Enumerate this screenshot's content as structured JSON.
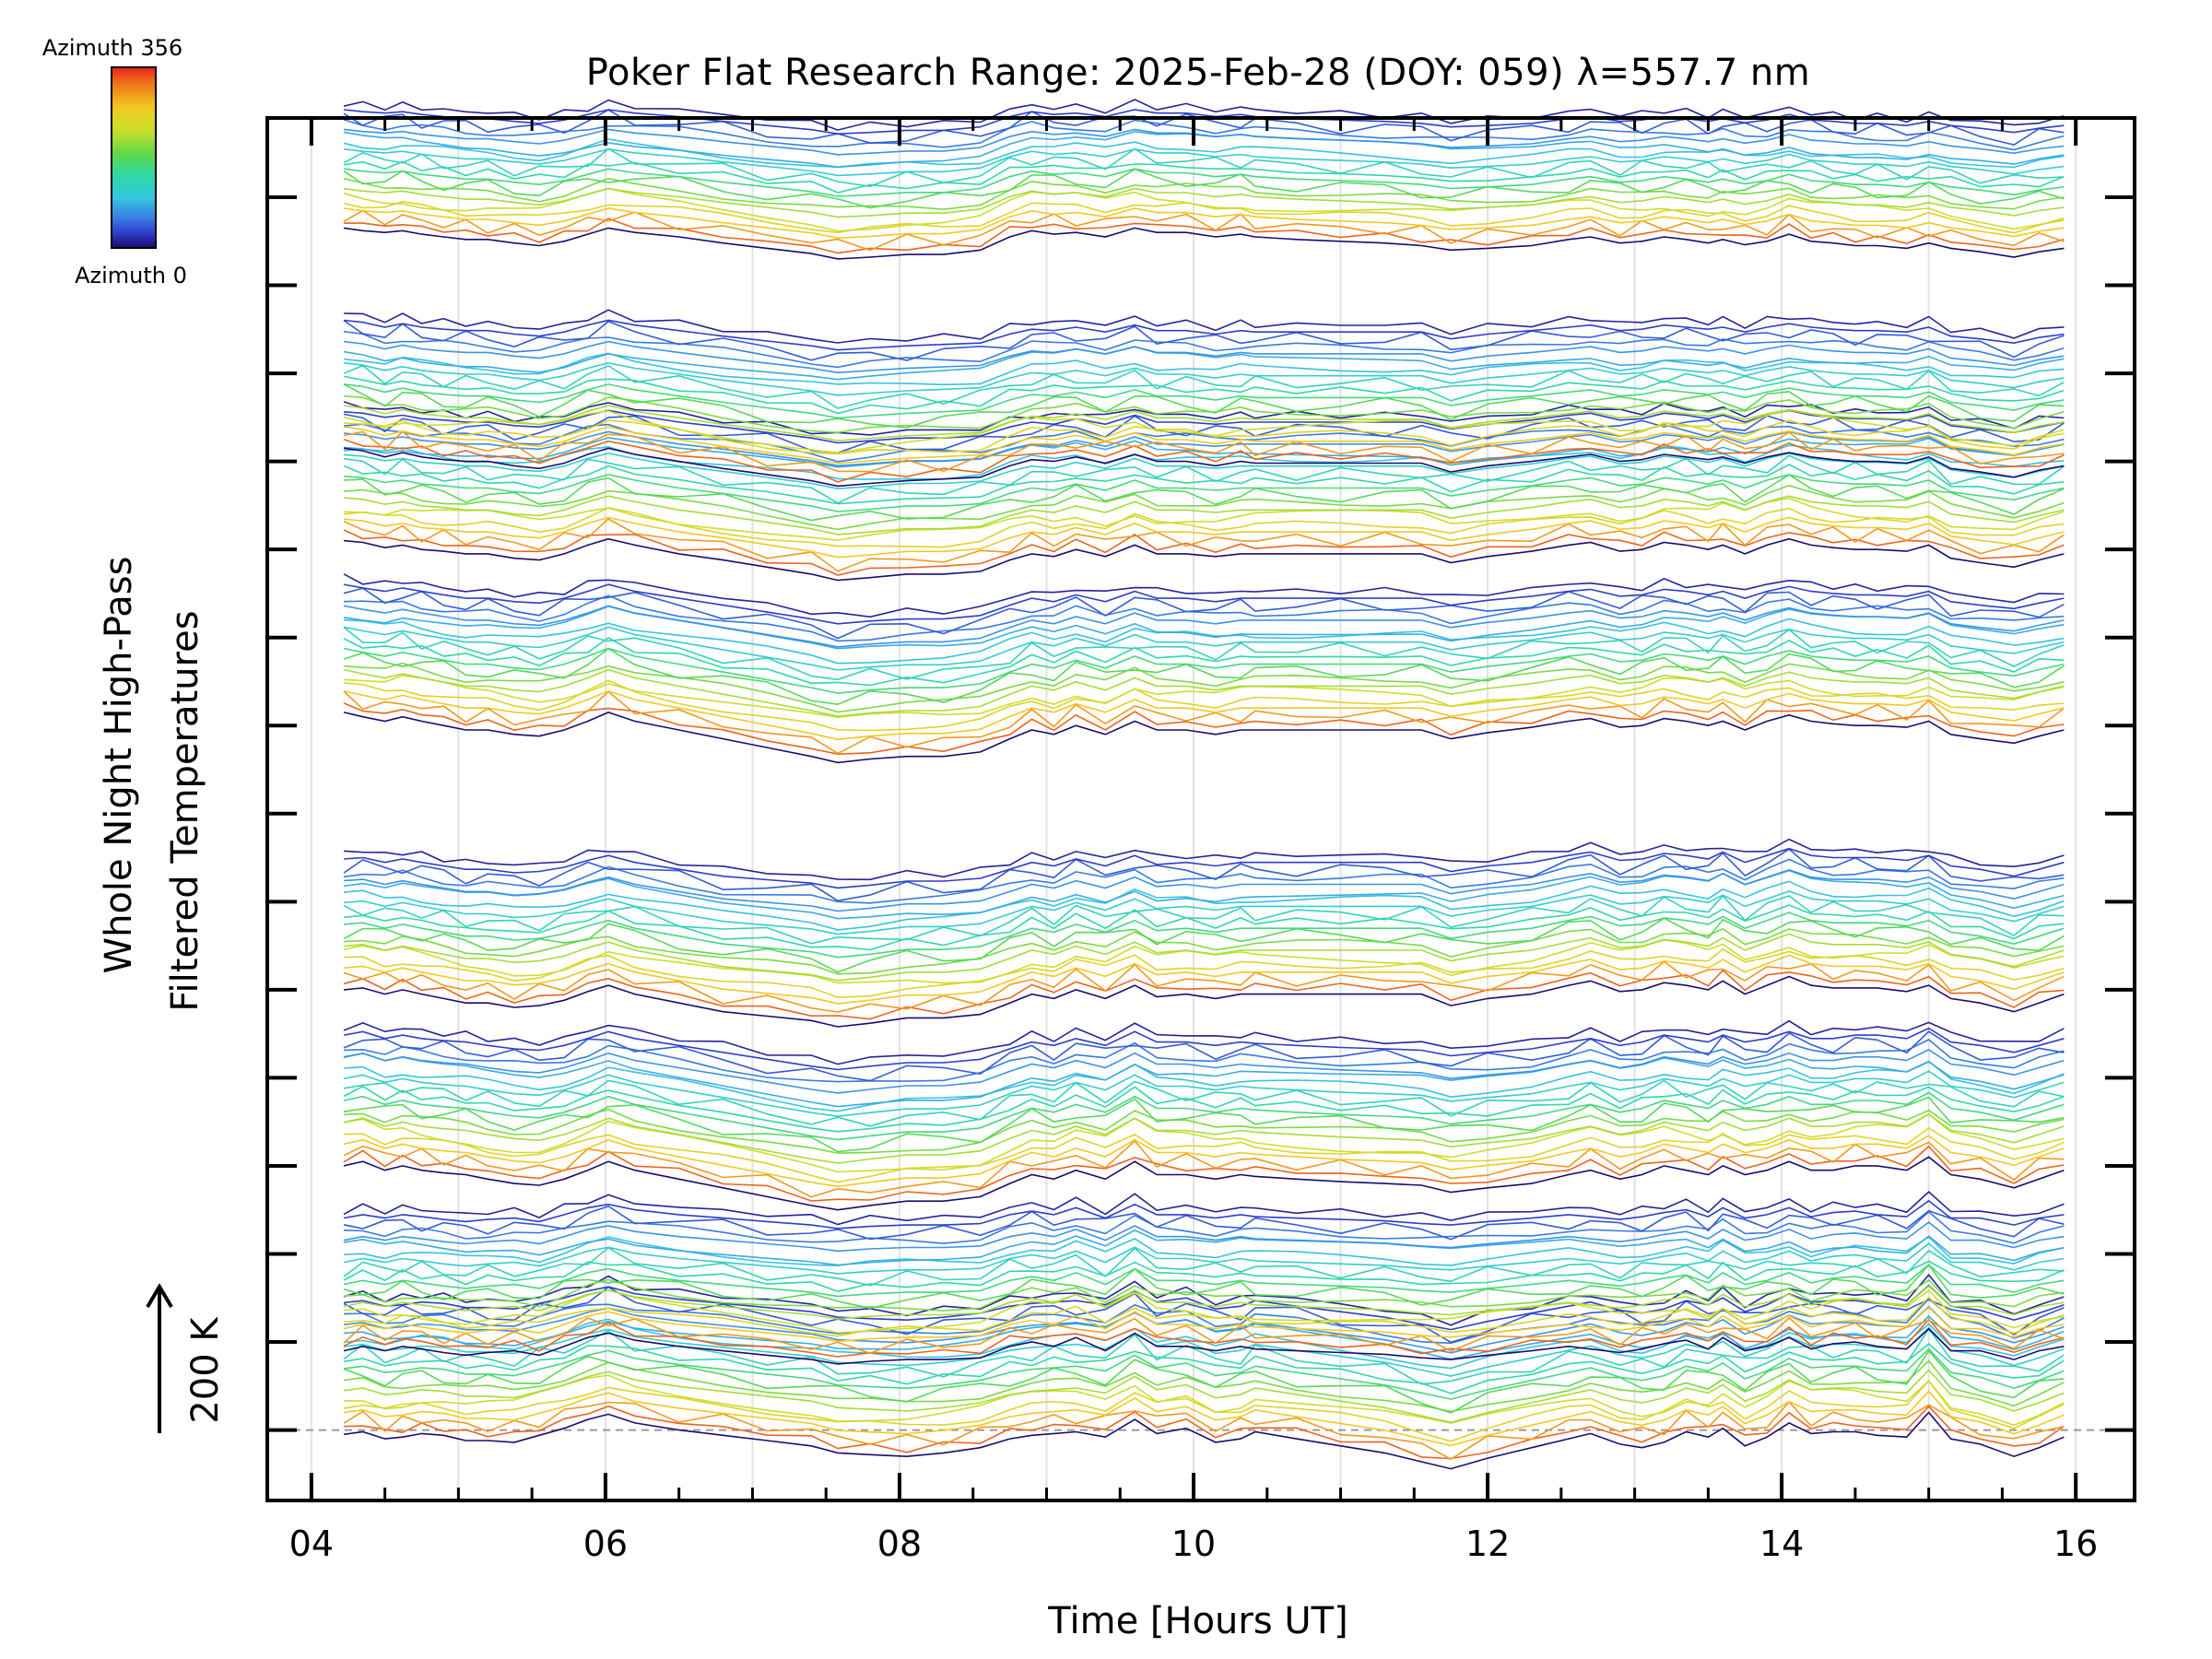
{
  "chart_data": {
    "type": "line",
    "title": "Poker Flat Research Range: 2025-Feb-28 (DOY: 059) λ=557.7 nm",
    "xlabel": "Time [Hours UT]",
    "ylabel_line1": "Whole Night High-Pass",
    "ylabel_line2": "Filtered Temperatures",
    "xlim": [
      3.7,
      16.4
    ],
    "xticks": [
      4,
      6,
      8,
      10,
      12,
      14,
      16
    ],
    "xtick_labels": [
      "04",
      "06",
      "08",
      "10",
      "12",
      "14",
      "16"
    ],
    "ylim": [
      -0.8,
      14.9
    ],
    "yticks": [
      0,
      1,
      2,
      3,
      4,
      5,
      6,
      7,
      8,
      9,
      10,
      11,
      12,
      13,
      14
    ],
    "scale_bar_label": "200 K",
    "colorbar": {
      "top_label": "Azimuth 356",
      "bottom_label": "Azimuth 0",
      "colors": [
        "#e8231c",
        "#f07c1a",
        "#f4c820",
        "#c9e02a",
        "#5ed84a",
        "#2ed8a6",
        "#35c8e0",
        "#3a86e6",
        "#2e3cc8",
        "#1c0a6e"
      ]
    },
    "grid": true,
    "series_count": 160,
    "lines_per_group": 20,
    "group_offset_step": 0.0825,
    "groups": 8,
    "time_samples": [
      4.22,
      4.35,
      4.5,
      4.62,
      4.75,
      4.9,
      5.05,
      5.2,
      5.38,
      5.55,
      5.72,
      5.88,
      6.02,
      6.2,
      6.5,
      6.8,
      7.1,
      7.4,
      7.58,
      7.8,
      8.05,
      8.3,
      8.55,
      8.75,
      8.9,
      9.05,
      9.2,
      9.4,
      9.6,
      9.75,
      9.95,
      10.15,
      10.32,
      10.42,
      10.7,
      11.0,
      11.3,
      11.55,
      11.75,
      12.0,
      12.3,
      12.55,
      12.7,
      12.9,
      13.05,
      13.2,
      13.35,
      13.5,
      13.6,
      13.75,
      13.9,
      14.05,
      14.2,
      14.35,
      14.5,
      14.65,
      14.85,
      15.0,
      15.15,
      15.35,
      15.58,
      15.75,
      15.92
    ],
    "group_profiles": [
      {
        "name": "group-1",
        "base": 0.0,
        "values": [
          -0.05,
          -0.02,
          -0.1,
          -0.08,
          -0.04,
          -0.06,
          -0.12,
          -0.12,
          -0.14,
          -0.06,
          0.02,
          0.12,
          0.18,
          0.08,
          0.0,
          -0.06,
          -0.12,
          -0.18,
          -0.26,
          -0.28,
          -0.3,
          -0.26,
          -0.2,
          -0.1,
          -0.06,
          -0.04,
          -0.02,
          -0.08,
          0.12,
          -0.04,
          0.02,
          -0.14,
          -0.1,
          -0.02,
          -0.1,
          -0.18,
          -0.26,
          -0.36,
          -0.44,
          -0.32,
          -0.2,
          -0.1,
          -0.04,
          -0.16,
          -0.2,
          -0.14,
          -0.02,
          -0.08,
          0.02,
          -0.18,
          -0.08,
          0.08,
          -0.04,
          -0.02,
          -0.02,
          -0.06,
          -0.08,
          0.2,
          -0.1,
          -0.16,
          -0.3,
          -0.2,
          -0.08
        ]
      },
      {
        "name": "group-2",
        "base": 1.0,
        "values": [
          -0.1,
          -0.05,
          -0.1,
          -0.05,
          -0.08,
          -0.12,
          -0.15,
          -0.12,
          -0.1,
          -0.15,
          -0.05,
          0.05,
          0.1,
          0.02,
          -0.05,
          -0.1,
          -0.15,
          -0.2,
          -0.25,
          -0.22,
          -0.2,
          -0.2,
          -0.18,
          -0.05,
          0.0,
          -0.05,
          0.05,
          -0.1,
          0.1,
          -0.05,
          -0.05,
          -0.1,
          -0.05,
          -0.08,
          -0.1,
          -0.12,
          -0.14,
          -0.18,
          -0.2,
          -0.15,
          -0.1,
          -0.05,
          -0.08,
          -0.12,
          -0.08,
          -0.02,
          0.02,
          -0.08,
          0.05,
          -0.1,
          -0.05,
          0.05,
          -0.08,
          -0.02,
          0.0,
          -0.05,
          -0.08,
          0.15,
          -0.1,
          -0.1,
          -0.2,
          -0.1,
          -0.05
        ]
      },
      {
        "name": "group-3",
        "base": 3.0,
        "values": [
          0.0,
          0.05,
          -0.05,
          0.0,
          -0.05,
          -0.08,
          -0.1,
          -0.15,
          -0.2,
          -0.22,
          -0.15,
          -0.05,
          0.05,
          -0.05,
          -0.15,
          -0.25,
          -0.35,
          -0.45,
          -0.5,
          -0.45,
          -0.4,
          -0.4,
          -0.35,
          -0.2,
          -0.1,
          -0.15,
          -0.05,
          -0.15,
          0.05,
          -0.1,
          -0.1,
          -0.15,
          -0.1,
          -0.12,
          -0.15,
          -0.18,
          -0.2,
          -0.22,
          -0.3,
          -0.25,
          -0.2,
          -0.1,
          -0.05,
          -0.15,
          -0.1,
          0.0,
          -0.05,
          -0.1,
          0.0,
          -0.1,
          -0.05,
          0.05,
          -0.05,
          -0.05,
          0.0,
          0.0,
          -0.05,
          0.1,
          -0.1,
          -0.15,
          -0.25,
          -0.15,
          -0.05
        ]
      },
      {
        "name": "group-4",
        "base": 5.0,
        "values": [
          0.0,
          0.02,
          -0.05,
          0.0,
          -0.05,
          -0.1,
          -0.15,
          -0.15,
          -0.2,
          -0.18,
          -0.12,
          -0.02,
          0.05,
          -0.05,
          -0.15,
          -0.25,
          -0.3,
          -0.35,
          -0.42,
          -0.38,
          -0.32,
          -0.32,
          -0.28,
          -0.15,
          -0.05,
          -0.1,
          0.0,
          -0.1,
          0.05,
          -0.08,
          -0.05,
          -0.1,
          -0.05,
          -0.05,
          -0.05,
          -0.05,
          -0.05,
          -0.05,
          -0.18,
          -0.1,
          -0.05,
          0.05,
          0.1,
          -0.02,
          0.0,
          0.08,
          0.05,
          0.0,
          0.1,
          -0.05,
          0.05,
          0.15,
          0.05,
          0.02,
          0.02,
          0.02,
          -0.02,
          0.05,
          -0.1,
          -0.15,
          -0.25,
          -0.15,
          -0.05
        ]
      },
      {
        "name": "group-5",
        "base": 8.0,
        "values": [
          0.15,
          0.1,
          0.05,
          0.1,
          0.05,
          0.0,
          -0.05,
          -0.05,
          -0.1,
          -0.12,
          -0.05,
          0.05,
          0.15,
          0.05,
          -0.05,
          -0.15,
          -0.25,
          -0.35,
          -0.42,
          -0.38,
          -0.35,
          -0.35,
          -0.3,
          -0.15,
          -0.05,
          -0.1,
          0.0,
          -0.1,
          0.05,
          -0.05,
          -0.05,
          -0.1,
          -0.05,
          -0.05,
          -0.05,
          -0.05,
          -0.05,
          -0.05,
          -0.15,
          -0.08,
          -0.02,
          0.05,
          0.08,
          -0.02,
          0.0,
          0.08,
          0.05,
          0.0,
          0.05,
          -0.05,
          0.05,
          0.12,
          0.05,
          0.02,
          0.0,
          0.0,
          -0.02,
          0.05,
          -0.1,
          -0.15,
          -0.2,
          -0.12,
          -0.05
        ]
      },
      {
        "name": "group-6",
        "base": 10.0,
        "values": [
          0.1,
          0.08,
          0.02,
          0.05,
          0.0,
          -0.02,
          -0.05,
          -0.05,
          -0.1,
          -0.12,
          -0.05,
          0.05,
          0.12,
          0.05,
          -0.05,
          -0.12,
          -0.2,
          -0.28,
          -0.35,
          -0.32,
          -0.28,
          -0.28,
          -0.25,
          -0.12,
          -0.05,
          -0.08,
          0.0,
          -0.08,
          0.05,
          -0.05,
          -0.05,
          -0.08,
          -0.05,
          -0.05,
          -0.05,
          -0.05,
          -0.05,
          -0.05,
          -0.15,
          -0.08,
          -0.02,
          0.05,
          0.08,
          -0.02,
          0.0,
          0.08,
          0.05,
          0.0,
          0.05,
          -0.05,
          0.05,
          0.12,
          0.05,
          0.02,
          0.0,
          0.0,
          -0.02,
          0.05,
          -0.1,
          -0.15,
          -0.2,
          -0.12,
          -0.05
        ]
      },
      {
        "name": "group-7",
        "base": 11.0,
        "values": [
          0.15,
          0.12,
          0.05,
          0.1,
          0.05,
          0.02,
          0.0,
          0.0,
          -0.05,
          -0.08,
          -0.02,
          0.08,
          0.15,
          0.08,
          0.0,
          -0.08,
          -0.15,
          -0.22,
          -0.28,
          -0.25,
          -0.22,
          -0.2,
          -0.18,
          -0.05,
          0.02,
          0.0,
          0.05,
          -0.02,
          0.08,
          0.0,
          0.0,
          -0.05,
          0.0,
          -0.02,
          -0.02,
          -0.02,
          -0.02,
          -0.02,
          -0.12,
          -0.05,
          0.0,
          0.05,
          0.08,
          0.0,
          0.02,
          0.08,
          0.05,
          0.02,
          0.05,
          -0.02,
          0.05,
          0.1,
          0.05,
          0.02,
          0.0,
          0.0,
          -0.02,
          0.05,
          -0.08,
          -0.12,
          -0.18,
          -0.1,
          -0.05
        ]
      },
      {
        "name": "group-8",
        "base": 13.0,
        "values": [
          0.65,
          0.62,
          0.6,
          0.62,
          0.58,
          0.55,
          0.52,
          0.52,
          0.48,
          0.45,
          0.5,
          0.58,
          0.65,
          0.6,
          0.55,
          0.48,
          0.42,
          0.36,
          0.3,
          0.32,
          0.35,
          0.35,
          0.4,
          0.55,
          0.62,
          0.58,
          0.6,
          0.55,
          0.65,
          0.6,
          0.6,
          0.55,
          0.58,
          0.55,
          0.52,
          0.5,
          0.48,
          0.45,
          0.4,
          0.42,
          0.45,
          0.52,
          0.55,
          0.48,
          0.5,
          0.55,
          0.52,
          0.48,
          0.52,
          0.46,
          0.5,
          0.58,
          0.5,
          0.48,
          0.45,
          0.45,
          0.42,
          0.48,
          0.42,
          0.38,
          0.32,
          0.38,
          0.42
        ]
      }
    ]
  }
}
